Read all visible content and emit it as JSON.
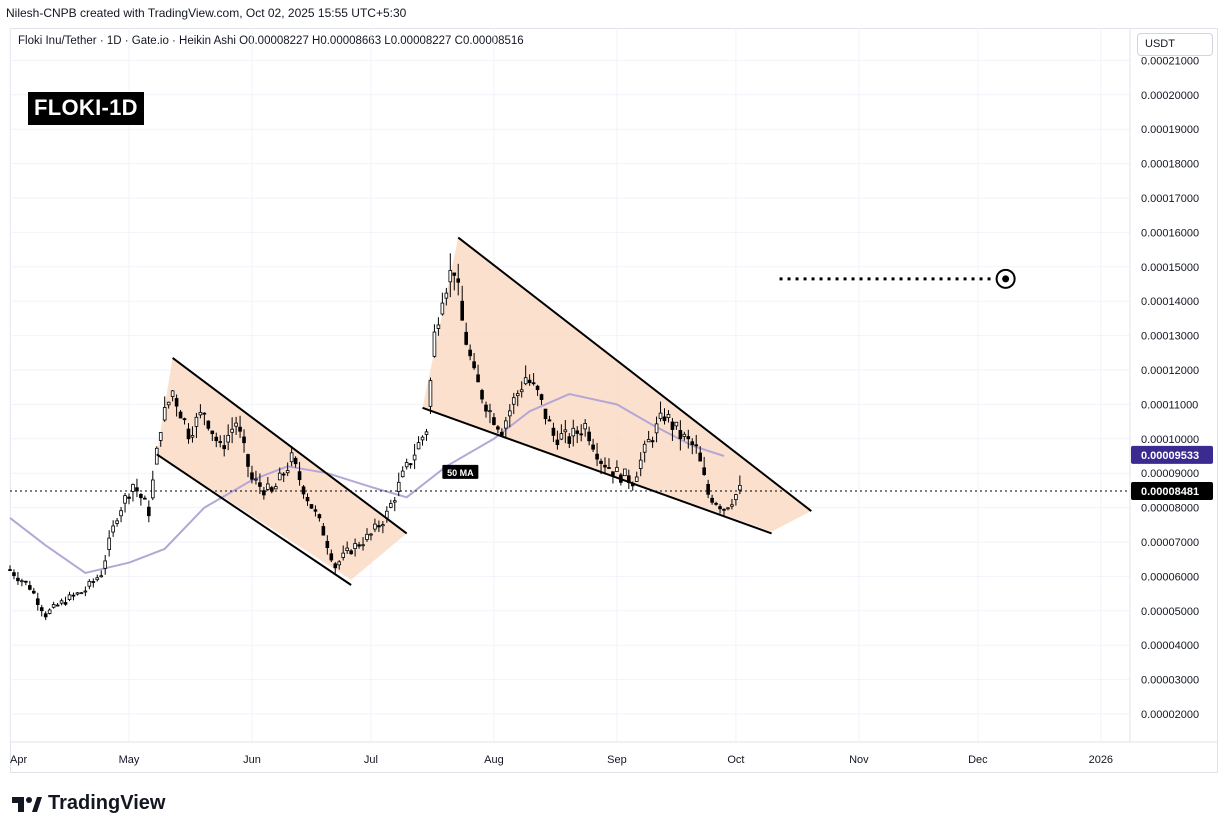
{
  "caption": "Nilesh-CNPB created with TradingView.com, Oct 02, 2025 15:55 UTC+5:30",
  "symbol_line": "Floki Inu/Tether · 1D · Gate.io · Heikin Ashi  O0.00008227  H0.00008663  L0.00008227  C0.00008516",
  "badge": "FLOKI-1D",
  "unit": "USDT",
  "footer": "TradingView",
  "colors": {
    "candle": "#000000",
    "pattern_fill": "#fbd6bd",
    "ma_line": "#b4a7d6",
    "ma_badge": "#3b2a8f",
    "price_badge": "#000000"
  },
  "chart_data": {
    "type": "candlestick",
    "x_ticks": [
      "Apr",
      "May",
      "Jun",
      "Jul",
      "Aug",
      "Sep",
      "Oct",
      "Nov",
      "Dec",
      "2026"
    ],
    "y_ticks": [
      "0.00021000",
      "0.00020000",
      "0.00019000",
      "0.00018000",
      "0.00017000",
      "0.00016000",
      "0.00015000",
      "0.00014000",
      "0.00013000",
      "0.00012000",
      "0.00011000",
      "0.00010000",
      "0.00009000",
      "0.00008000",
      "0.00007000",
      "0.00006000",
      "0.00005000",
      "0.00004000",
      "0.00003000",
      "0.00002000"
    ],
    "ylim": [
      1e-05,
      0.000223
    ],
    "annotations": {
      "ma_label": "50 MA",
      "ma_value": "0.00009533",
      "current_price": "0.00008481",
      "target_price": 0.0001465
    },
    "price_anchors": [
      [
        "2025-04-01",
        6.2e-05
      ],
      [
        "2025-04-06",
        5.7e-05
      ],
      [
        "2025-04-10",
        4.9e-05
      ],
      [
        "2025-04-15",
        5.3e-05
      ],
      [
        "2025-04-20",
        5.6e-05
      ],
      [
        "2025-04-24",
        6.1e-05
      ],
      [
        "2025-04-28",
        7.8e-05
      ],
      [
        "2025-05-02",
        8.7e-05
      ],
      [
        "2025-05-06",
        7.9e-05
      ],
      [
        "2025-05-09",
        0.000104
      ],
      [
        "2025-05-12",
        0.000114
      ],
      [
        "2025-05-16",
        0.000102
      ],
      [
        "2025-05-20",
        0.000108
      ],
      [
        "2025-05-24",
        9.7e-05
      ],
      [
        "2025-05-28",
        0.000105
      ],
      [
        "2025-06-01",
        8.8e-05
      ],
      [
        "2025-06-06",
        8.4e-05
      ],
      [
        "2025-06-11",
        9.4e-05
      ],
      [
        "2025-06-15",
        8.3e-05
      ],
      [
        "2025-06-19",
        7.3e-05
      ],
      [
        "2025-06-22",
        6.3e-05
      ],
      [
        "2025-06-26",
        6.8e-05
      ],
      [
        "2025-07-01",
        7.2e-05
      ],
      [
        "2025-07-05",
        7.8e-05
      ],
      [
        "2025-07-09",
        8.9e-05
      ],
      [
        "2025-07-12",
        9.6e-05
      ],
      [
        "2025-07-15",
        0.000103
      ],
      [
        "2025-07-17",
        0.00013
      ],
      [
        "2025-07-19",
        0.000143
      ],
      [
        "2025-07-22",
        0.00015
      ],
      [
        "2025-07-24",
        0.000134
      ],
      [
        "2025-07-27",
        0.000118
      ],
      [
        "2025-07-31",
        0.000108
      ],
      [
        "2025-08-03",
        0.000103
      ],
      [
        "2025-08-06",
        0.000111
      ],
      [
        "2025-08-09",
        0.000118
      ],
      [
        "2025-08-12",
        0.000113
      ],
      [
        "2025-08-16",
        0.000101
      ],
      [
        "2025-08-20",
        0.0001
      ],
      [
        "2025-08-24",
        0.000104
      ],
      [
        "2025-08-28",
        9.4e-05
      ],
      [
        "2025-09-01",
        9e-05
      ],
      [
        "2025-09-05",
        8.8e-05
      ],
      [
        "2025-09-09",
        9.9e-05
      ],
      [
        "2025-09-13",
        0.000107
      ],
      [
        "2025-09-17",
        0.000101
      ],
      [
        "2025-09-21",
        9.7e-05
      ],
      [
        "2025-09-24",
        8.4e-05
      ],
      [
        "2025-09-28",
        8e-05
      ],
      [
        "2025-10-02",
        8.5e-05
      ]
    ],
    "ma_anchors": [
      [
        "2025-04-01",
        7.7e-05
      ],
      [
        "2025-04-10",
        6.9e-05
      ],
      [
        "2025-04-20",
        6.1e-05
      ],
      [
        "2025-05-01",
        6.4e-05
      ],
      [
        "2025-05-10",
        6.8e-05
      ],
      [
        "2025-05-20",
        8e-05
      ],
      [
        "2025-06-01",
        8.8e-05
      ],
      [
        "2025-06-10",
        9.2e-05
      ],
      [
        "2025-06-20",
        9e-05
      ],
      [
        "2025-07-01",
        8.6e-05
      ],
      [
        "2025-07-10",
        8.3e-05
      ],
      [
        "2025-07-20",
        9.2e-05
      ],
      [
        "2025-08-01",
        0.0001
      ],
      [
        "2025-08-10",
        0.000108
      ],
      [
        "2025-08-20",
        0.000113
      ],
      [
        "2025-09-01",
        0.00011
      ],
      [
        "2025-09-10",
        0.000104
      ],
      [
        "2025-09-20",
        9.8e-05
      ],
      [
        "2025-09-28",
        9.5e-05
      ]
    ],
    "patterns": [
      {
        "name": "descending-channel",
        "upper_line": [
          [
            "2025-05-12",
            0.0001235
          ],
          [
            "2025-07-10",
            7.25e-05
          ]
        ],
        "lower_line": [
          [
            "2025-05-08",
            9.55e-05
          ],
          [
            "2025-06-26",
            5.75e-05
          ]
        ],
        "fill_polygon": [
          [
            "2025-05-12",
            0.0001235
          ],
          [
            "2025-07-10",
            7.25e-05
          ],
          [
            "2025-06-26",
            5.9e-05
          ],
          [
            "2025-05-08",
            9.55e-05
          ]
        ]
      },
      {
        "name": "falling-wedge",
        "upper_line": [
          [
            "2025-07-23",
            0.0001585
          ],
          [
            "2025-10-20",
            7.9e-05
          ]
        ],
        "lower_line": [
          [
            "2025-07-14",
            0.000109
          ],
          [
            "2025-10-10",
            7.25e-05
          ]
        ],
        "fill_polygon": [
          [
            "2025-07-23",
            0.0001585
          ],
          [
            "2025-10-20",
            7.9e-05
          ],
          [
            "2025-10-10",
            7.3e-05
          ],
          [
            "2025-07-14",
            0.000109
          ]
        ]
      }
    ],
    "target_line": {
      "from": "2025-10-12",
      "to": "2025-12-08",
      "value": 0.0001465
    }
  }
}
